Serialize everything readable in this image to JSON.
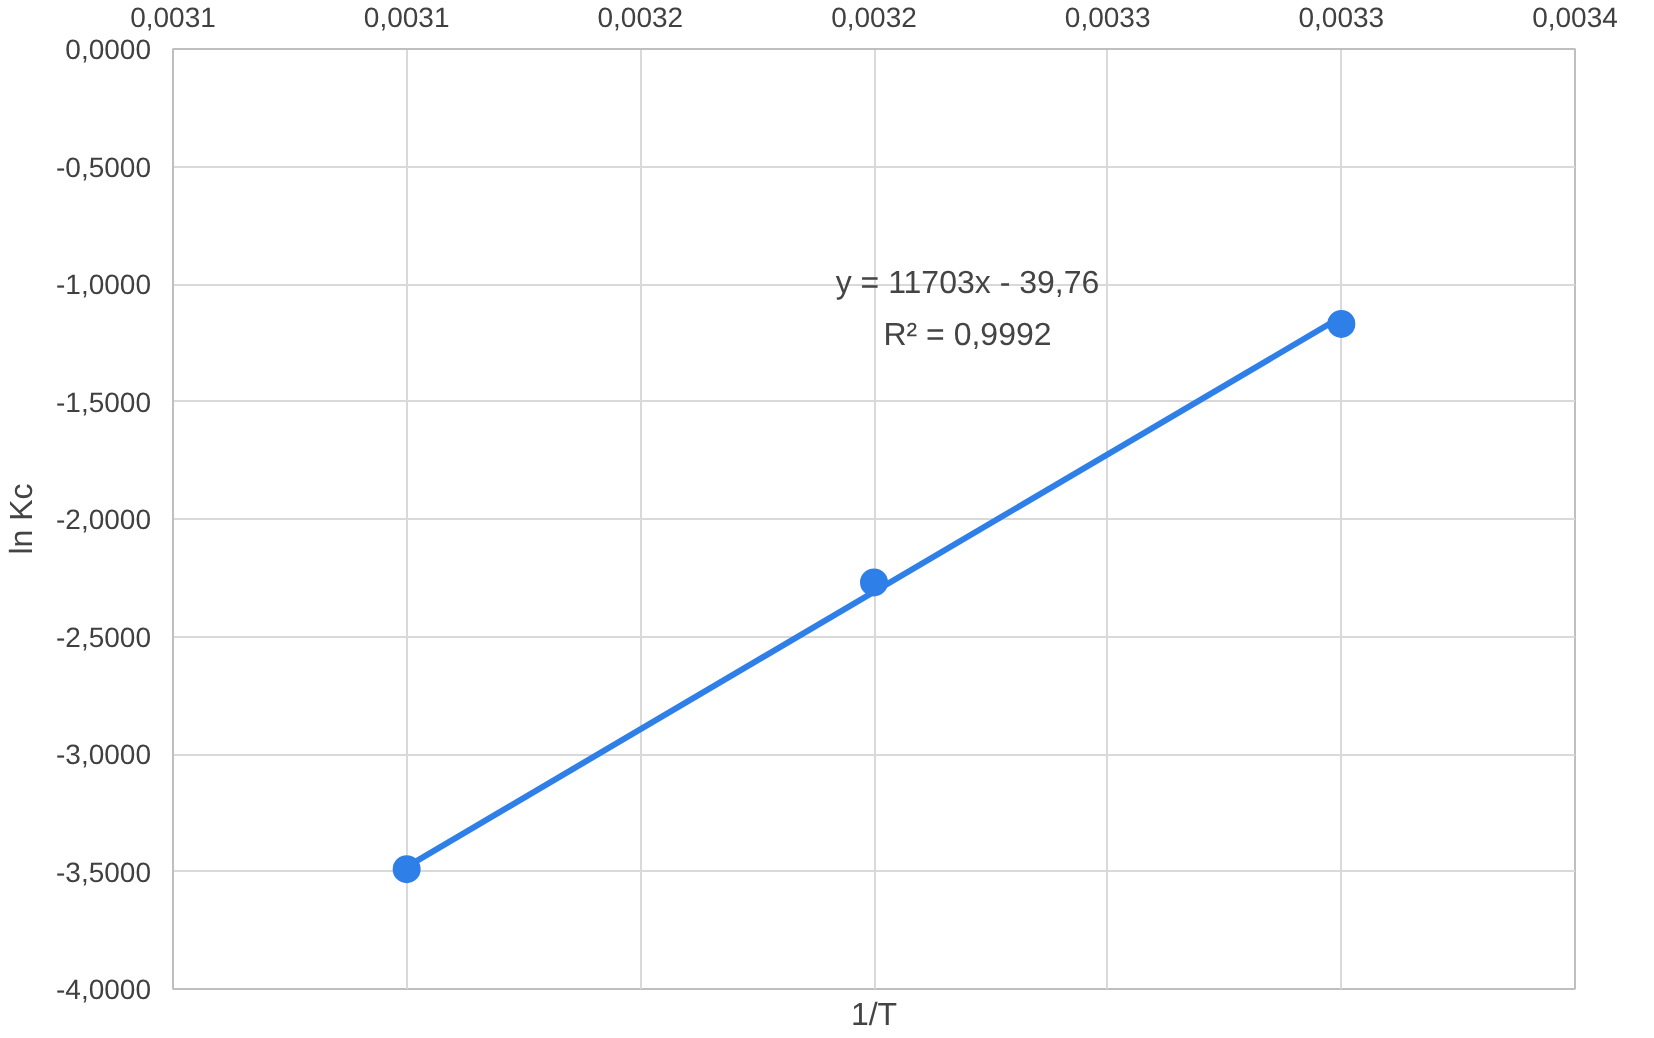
{
  "chart_data": {
    "type": "scatter",
    "xlabel": "1/T",
    "ylabel": "ln Kc",
    "xlim": [
      0.00305,
      0.00335
    ],
    "ylim": [
      -4,
      0
    ],
    "xticks": [
      {
        "value": 0.00305,
        "label": "0,0031"
      },
      {
        "value": 0.0031,
        "label": "0,0031"
      },
      {
        "value": 0.00315,
        "label": "0,0032"
      },
      {
        "value": 0.0032,
        "label": "0,0032"
      },
      {
        "value": 0.00325,
        "label": "0,0033"
      },
      {
        "value": 0.0033,
        "label": "0,0033"
      },
      {
        "value": 0.00335,
        "label": "0,0034"
      }
    ],
    "yticks": [
      {
        "value": 0,
        "label": "0,0000"
      },
      {
        "value": -0.5,
        "label": "-0,5000"
      },
      {
        "value": -1,
        "label": "-1,0000"
      },
      {
        "value": -1.5,
        "label": "-1,5000"
      },
      {
        "value": -2,
        "label": "-2,0000"
      },
      {
        "value": -2.5,
        "label": "-2,5000"
      },
      {
        "value": -3,
        "label": "-3,0000"
      },
      {
        "value": -3.5,
        "label": "-3,5000"
      },
      {
        "value": -4,
        "label": "-4,0000"
      }
    ],
    "x": [
      0.0031,
      0.0032,
      0.0033
    ],
    "series": [
      {
        "type": "line",
        "marker": "none",
        "color": "#2e7fe8",
        "x": [
          0.0031,
          0.0033
        ],
        "values": [
          -3.48,
          -1.14
        ]
      },
      {
        "color": "#2e7fe8",
        "values": [
          -3.49,
          -2.27,
          -1.17
        ]
      }
    ],
    "marker": "circle",
    "line_style": "solid",
    "grid": true,
    "annotations": [
      "y = 11703x - 39,76",
      "R² = 0,9992"
    ]
  }
}
